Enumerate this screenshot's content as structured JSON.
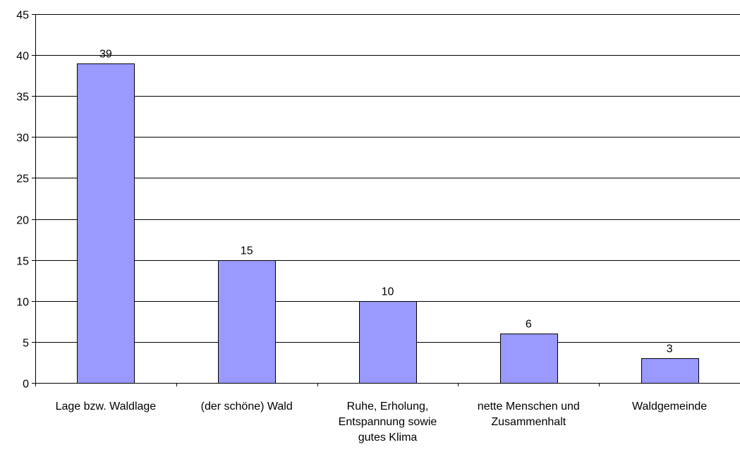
{
  "chart_data": {
    "type": "bar",
    "title": "",
    "xlabel": "",
    "ylabel": "",
    "categories": [
      [
        "Lage bzw. Waldlage"
      ],
      [
        "(der schöne) Wald"
      ],
      [
        "Ruhe, Erholung,",
        "Entspannung sowie",
        "gutes Klima"
      ],
      [
        "nette Menschen und",
        "Zusammenhalt"
      ],
      [
        "Waldgemeinde"
      ]
    ],
    "values": [
      39,
      15,
      10,
      6,
      3
    ],
    "data_labels": [
      "39",
      "15",
      "10",
      "6",
      "3"
    ],
    "ylim": [
      0,
      45
    ],
    "yticks": [
      0,
      5,
      10,
      15,
      20,
      25,
      30,
      35,
      40,
      45
    ],
    "ytick_labels": [
      "0",
      "5",
      "10",
      "15",
      "20",
      "25",
      "30",
      "35",
      "40",
      "45"
    ],
    "grid": true,
    "legend": "none",
    "colors": {
      "bar_fill": "#9999ff",
      "bar_stroke": "#000000",
      "grid": "#000000",
      "axis": "#000000",
      "background": "#ffffff"
    }
  }
}
